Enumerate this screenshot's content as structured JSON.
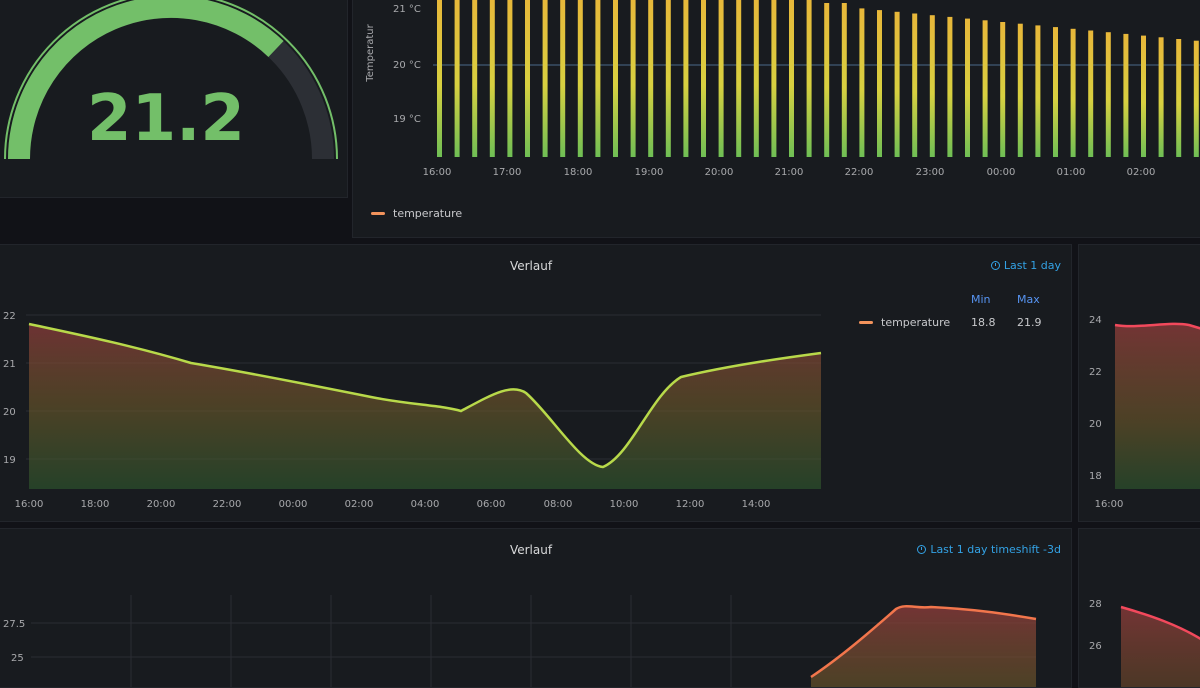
{
  "gauge": {
    "value": "21.2",
    "fill_fraction": 0.75,
    "color": "#73bf69"
  },
  "top_chart": {
    "y_ticks": [
      "21 °C",
      "20 °C",
      "19 °C"
    ],
    "y_label": "Temperatur",
    "x_ticks": [
      "16:00",
      "17:00",
      "18:00",
      "19:00",
      "20:00",
      "21:00",
      "22:00",
      "23:00",
      "00:00",
      "01:00",
      "02:00"
    ],
    "legend": "temperature"
  },
  "panel_mid": {
    "title": "Verlauf",
    "time_info": "Last 1 day",
    "legend": {
      "series": "temperature",
      "min_label": "Min",
      "max_label": "Max",
      "min_value": "18.8",
      "max_value": "21.9"
    },
    "y_ticks": [
      "22",
      "21",
      "20",
      "19"
    ],
    "x_ticks": [
      "16:00",
      "18:00",
      "20:00",
      "22:00",
      "00:00",
      "02:00",
      "04:00",
      "06:00",
      "08:00",
      "10:00",
      "12:00",
      "14:00"
    ]
  },
  "panel_mid_right": {
    "y_ticks": [
      "24",
      "22",
      "20",
      "18"
    ],
    "x_ticks": [
      "16:00"
    ]
  },
  "panel_bottom": {
    "title": "Verlauf",
    "time_info": "Last 1 day timeshift -3d",
    "y_ticks": [
      "27.5",
      "25"
    ]
  },
  "panel_bottom_right": {
    "y_ticks": [
      "28",
      "26"
    ]
  },
  "colors": {
    "accent_blue": "#33a2e5",
    "series_warm": "#f2935c",
    "series_high": "#e02f44",
    "series_low": "#56a64b"
  }
}
